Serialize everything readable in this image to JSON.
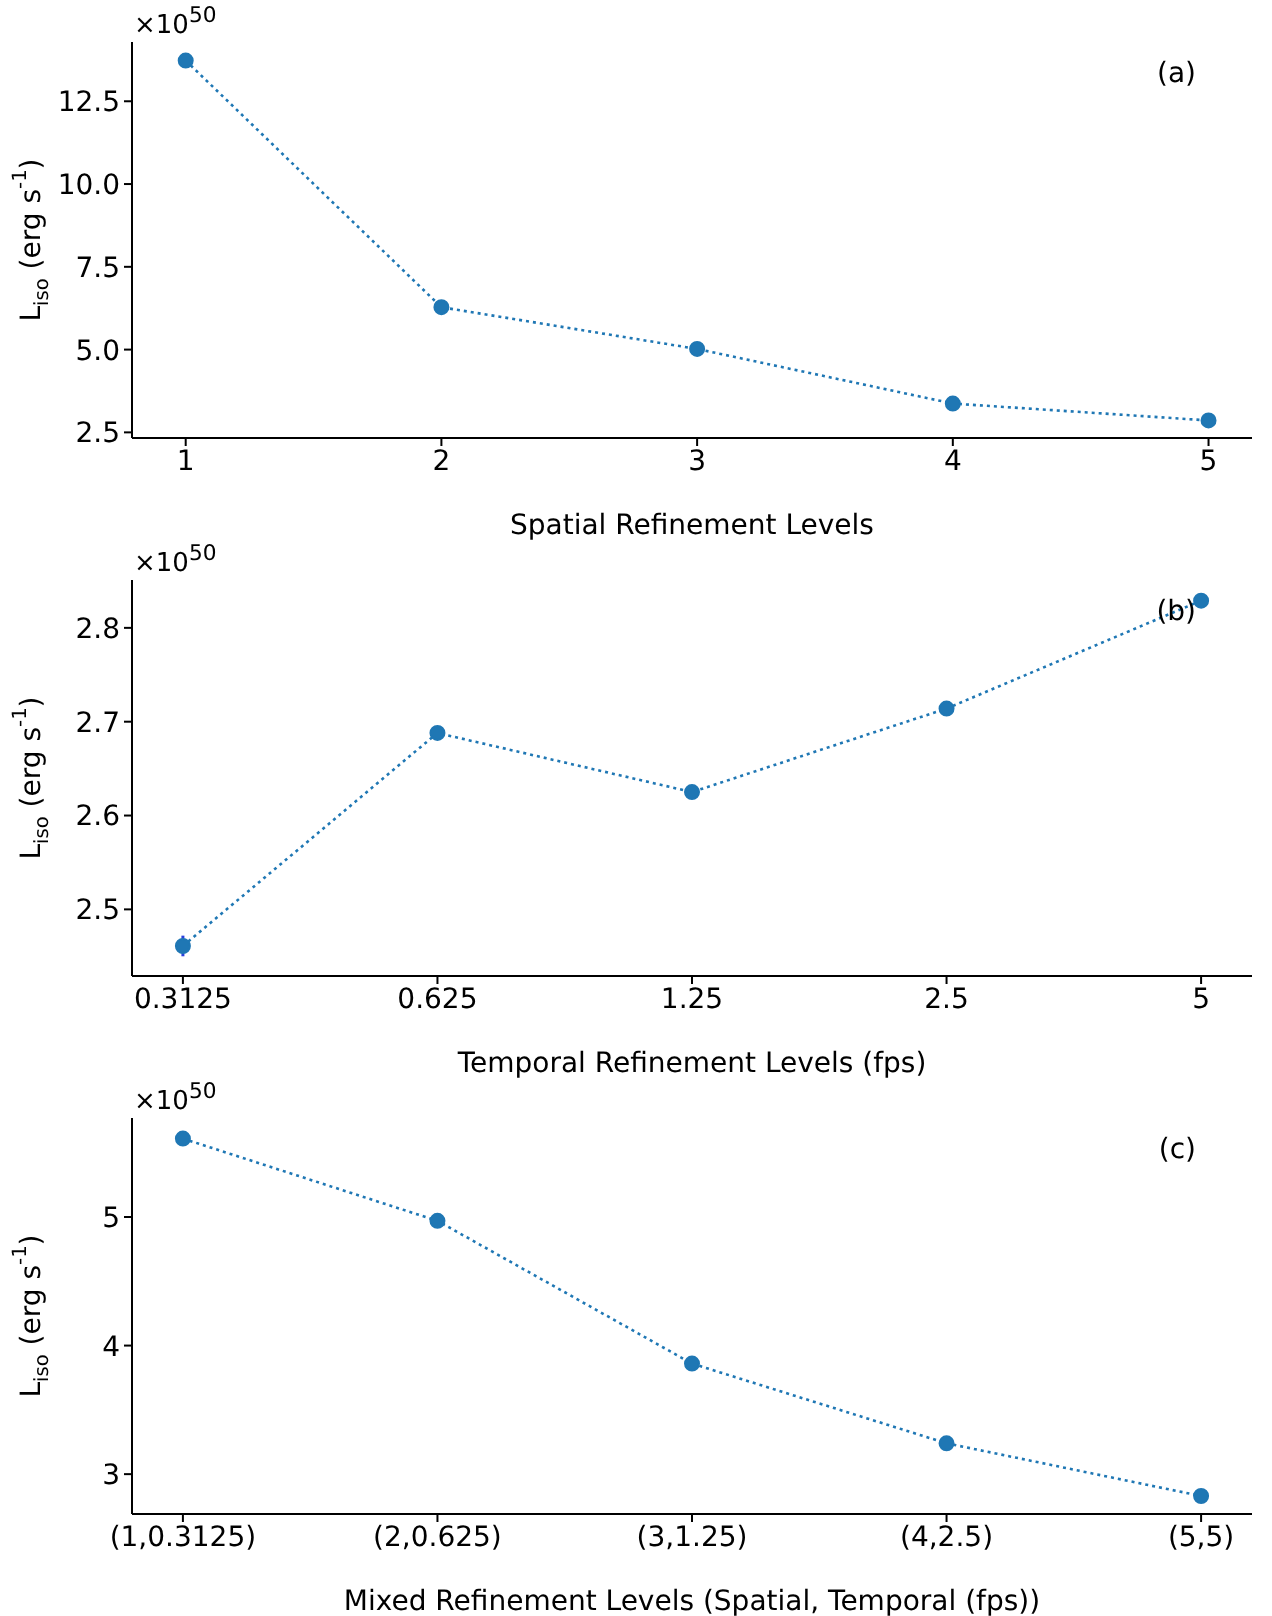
{
  "chart_data": [
    {
      "type": "line",
      "xlabel": "Spatial Refinement Levels",
      "ylabel": "L$_{iso}$ (erg s$^{-1}$)",
      "annotations": [
        "×10$^{50}$",
        "(a)"
      ],
      "x": [
        1,
        2,
        3,
        4,
        5
      ],
      "xlim": [
        0.79,
        5.17
      ],
      "xticks": [
        1,
        2,
        3,
        4,
        5
      ],
      "values": [
        13.73,
        6.28,
        5.02,
        3.37,
        2.86
      ],
      "color": "#1f77b4",
      "ylim": [
        2.33,
        14.29
      ],
      "yticks": [
        2.5,
        {
          "value": 5,
          "label": "5.0"
        },
        7.5,
        {
          "value": 10,
          "label": "10.0"
        },
        12.5
      ],
      "marker": "circle",
      "line_style": "dotted"
    },
    {
      "type": "line",
      "xlabel": "Temporal Refinement Levels (fps)",
      "ylabel": "L$_{iso}$ (erg s$^{-1}$)",
      "annotations": [
        "×10$^{50}$",
        "(b)"
      ],
      "categories": [
        "0.3125",
        "0.625",
        "1.25",
        "2.5",
        "5"
      ],
      "values": [
        2.461,
        2.688,
        2.625,
        2.714,
        2.829
      ],
      "errors": [
        0.011,
        0.006,
        0.004,
        0.003,
        0.003
      ],
      "color": "#1f77b4",
      "ylim": [
        2.429,
        2.851
      ],
      "yticks": [
        2.5,
        2.6,
        2.7,
        2.8
      ],
      "marker": "circle",
      "line_style": "dotted"
    },
    {
      "type": "line",
      "xlabel": "Mixed Refinement Levels (Spatial, Temporal (fps))",
      "ylabel": "L$_{iso}$ (erg s$^{-1}$)",
      "annotations": [
        "×10$^{50}$",
        "(c)"
      ],
      "categories": [
        "(1,0.3125)",
        "(2,0.625)",
        "(3,1.25)",
        "(4,2.5)",
        "(5,5)"
      ],
      "values": [
        5.61,
        4.97,
        3.86,
        3.24,
        2.83
      ],
      "color": "#1f77b4",
      "ylim": [
        2.69,
        5.77
      ],
      "yticks": [
        3,
        4,
        5
      ],
      "marker": "circle",
      "line_style": "dotted"
    }
  ]
}
